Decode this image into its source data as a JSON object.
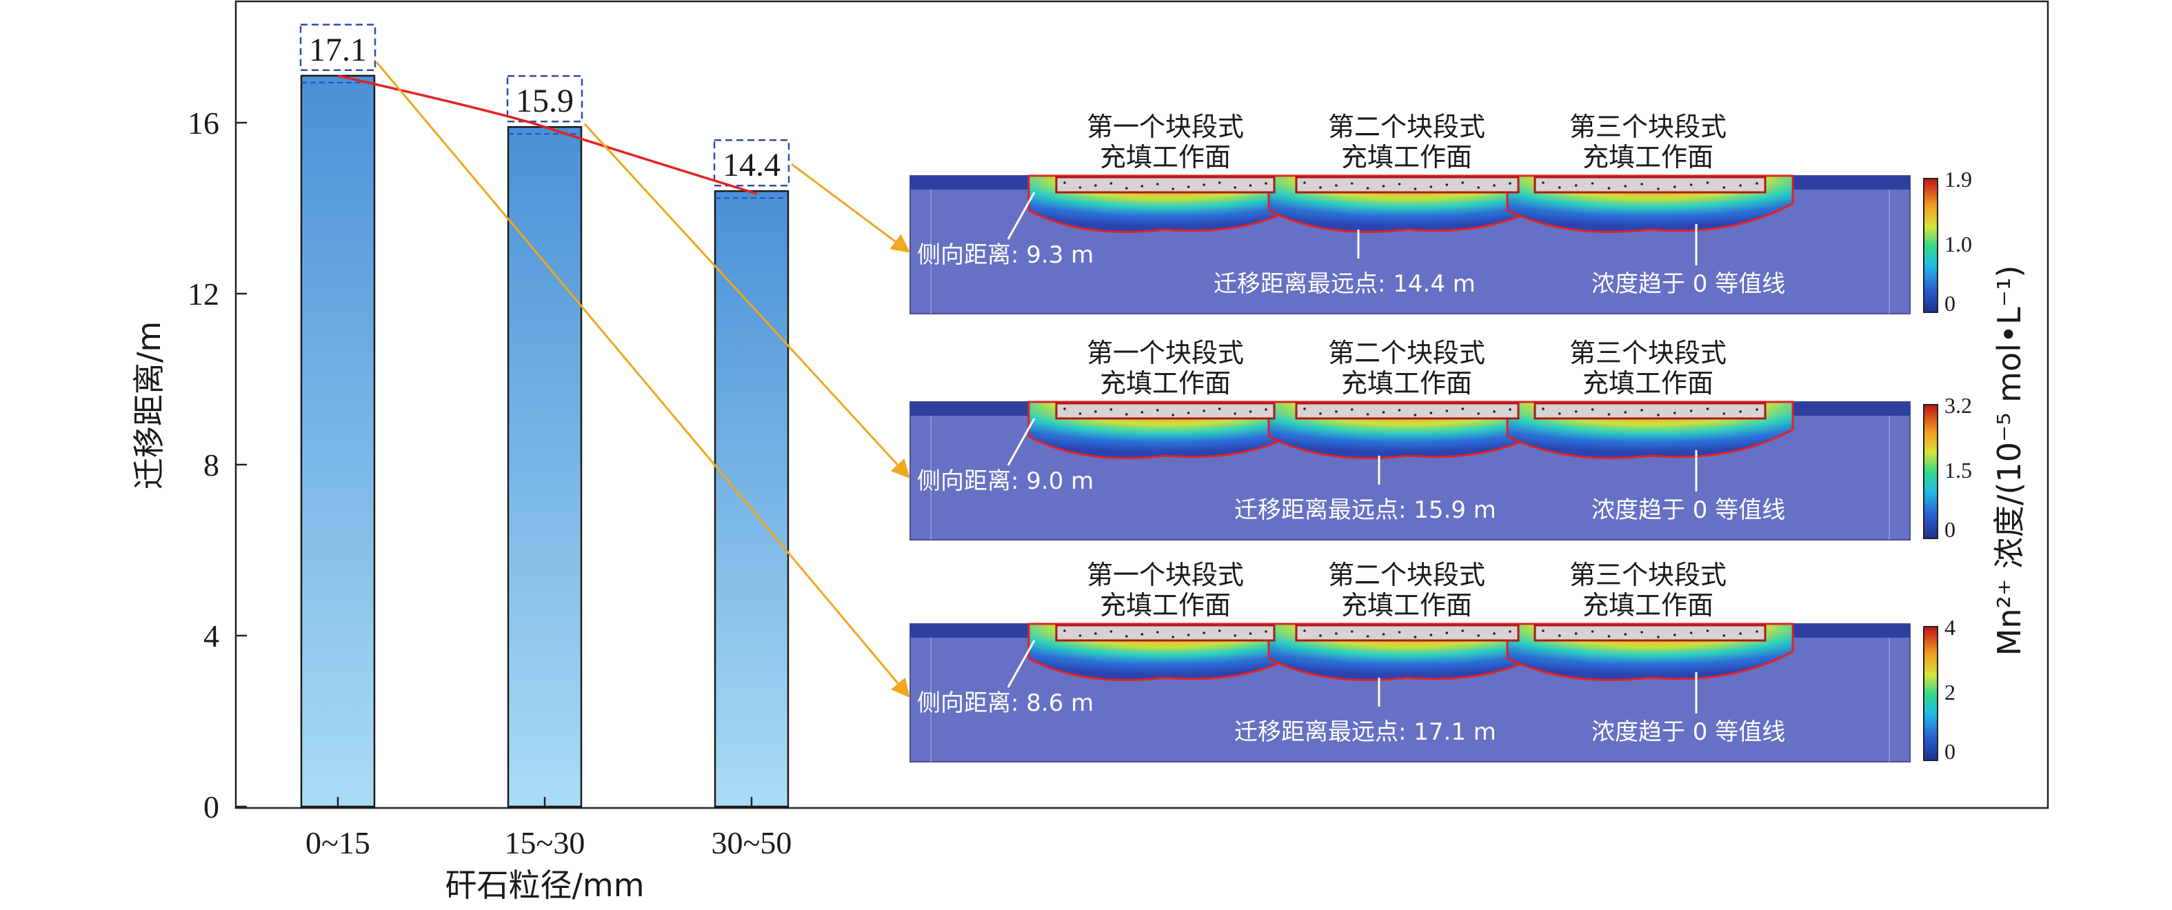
{
  "chart_data": {
    "type": "bar",
    "categories": [
      "0~15",
      "15~30",
      "30~50"
    ],
    "values": [
      17.1,
      15.9,
      14.4
    ],
    "data_labels": [
      "17.1",
      "15.9",
      "14.4"
    ],
    "xlabel": "矸石粒径/mm",
    "ylabel": "迁移距离/m",
    "ylim": [
      0,
      18.8
    ],
    "yticks": [
      0,
      4,
      8,
      12,
      16
    ],
    "grid": false,
    "colors": {
      "bar_top": "#4990d6",
      "bar_bottom": "#a9dcf6",
      "trend_line": "#e32222",
      "arrow": "#f0a820",
      "label_box": "#2a4ea8"
    }
  },
  "insets": [
    {
      "faces": [
        [
          "第一个块段式",
          "充填工作面"
        ],
        [
          "第二个块段式",
          "充填工作面"
        ],
        [
          "第三个块段式",
          "充填工作面"
        ]
      ],
      "lateral": "侧向距离: 9.3 m",
      "farthest": "迁移距离最远点: 14.4 m",
      "contour": "浓度趋于 0 等值线",
      "colorbar": {
        "max": "1.9",
        "mid": "1.0",
        "min": "0"
      }
    },
    {
      "faces": [
        [
          "第一个块段式",
          "充填工作面"
        ],
        [
          "第二个块段式",
          "充填工作面"
        ],
        [
          "第三个块段式",
          "充填工作面"
        ]
      ],
      "lateral": "侧向距离: 9.0 m",
      "farthest": "迁移距离最远点: 15.9 m",
      "contour": "浓度趋于 0 等值线",
      "colorbar": {
        "max": "3.2",
        "mid": "1.5",
        "min": "0"
      }
    },
    {
      "faces": [
        [
          "第一个块段式",
          "充填工作面"
        ],
        [
          "第二个块段式",
          "充填工作面"
        ],
        [
          "第三个块段式",
          "充填工作面"
        ]
      ],
      "lateral": "侧向距离: 8.6 m",
      "farthest": "迁移距离最远点: 17.1 m",
      "contour": "浓度趋于 0 等值线",
      "colorbar": {
        "max": "4",
        "mid": "2",
        "min": "0"
      }
    }
  ],
  "colorbar_label": "Mn²⁺ 浓度/(10⁻⁵ mol•L⁻¹)"
}
